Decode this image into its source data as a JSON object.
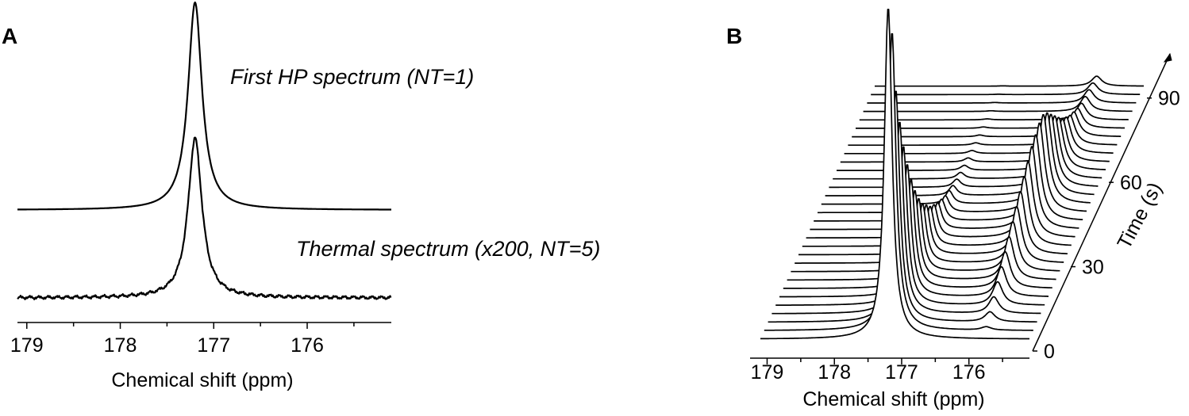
{
  "panels": {
    "a_label": "A",
    "b_label": "B"
  },
  "chart_data": [
    {
      "type": "line",
      "panel": "A",
      "xlabel": "Chemical shift (ppm)",
      "x_reversed": true,
      "xlim": [
        179.1,
        175.1
      ],
      "xticks": [
        179,
        178,
        177,
        176
      ],
      "xtick_labels": [
        "179",
        "178",
        "177",
        "176"
      ],
      "annotations": [
        "First HP spectrum (NT=1)",
        "Thermal spectrum (x200, NT=5)"
      ],
      "series": [
        {
          "name": "First HP spectrum (NT=1)",
          "peak_ppm": 177.2,
          "peak_height": 1.0,
          "linewidth_ppm": 0.09,
          "baseline_noise": 0.0
        },
        {
          "name": "Thermal spectrum (x200, NT=5)",
          "peak_ppm": 177.2,
          "peak_height": 0.77,
          "linewidth_ppm": 0.09,
          "baseline_noise": 0.02
        }
      ],
      "grid": false
    },
    {
      "type": "line",
      "panel": "B",
      "xlabel": "Chemical shift (ppm)",
      "x_reversed": true,
      "xlim": [
        179.1,
        175.1
      ],
      "xticks": [
        179,
        178,
        177,
        176
      ],
      "xtick_labels": [
        "179",
        "178",
        "177",
        "176"
      ],
      "zlabel": "Time (s)",
      "zlim": [
        0,
        95
      ],
      "zticks": [
        0,
        30,
        60,
        90
      ],
      "ztick_labels": [
        "0",
        "30",
        "60",
        "90"
      ],
      "peaks": [
        {
          "name": "peak at 177.2 ppm",
          "ppm": 177.2,
          "times": [
            0,
            3,
            6,
            9,
            12,
            15,
            18,
            21,
            24,
            27,
            30,
            33,
            36,
            39,
            42,
            45,
            48,
            51,
            54,
            57,
            60,
            63,
            66,
            69,
            72,
            75,
            78,
            81,
            84,
            87,
            90
          ],
          "heights": [
            1.0,
            0.9,
            0.7,
            0.58,
            0.48,
            0.4,
            0.33,
            0.27,
            0.22,
            0.18,
            0.15,
            0.12,
            0.1,
            0.08,
            0.065,
            0.05,
            0.04,
            0.03,
            0.024,
            0.019,
            0.015,
            0.012,
            0.009,
            0.007,
            0.005,
            0.004,
            0.003,
            0.002,
            0.0015,
            0.001,
            0.0008
          ]
        },
        {
          "name": "peak at 175.8 ppm",
          "ppm": 175.8,
          "times": [
            0,
            3,
            6,
            9,
            12,
            15,
            18,
            21,
            24,
            27,
            30,
            33,
            36,
            39,
            42,
            45,
            48,
            51,
            54,
            57,
            60,
            63,
            66,
            69,
            72,
            75,
            78,
            81,
            84,
            87,
            90
          ],
          "heights": [
            0.0,
            0.01,
            0.03,
            0.05,
            0.07,
            0.09,
            0.11,
            0.13,
            0.15,
            0.17,
            0.19,
            0.21,
            0.23,
            0.25,
            0.26,
            0.27,
            0.27,
            0.25,
            0.22,
            0.19,
            0.16,
            0.13,
            0.11,
            0.09,
            0.075,
            0.06,
            0.05,
            0.045,
            0.04,
            0.035,
            0.03
          ]
        }
      ],
      "grid": false
    }
  ]
}
